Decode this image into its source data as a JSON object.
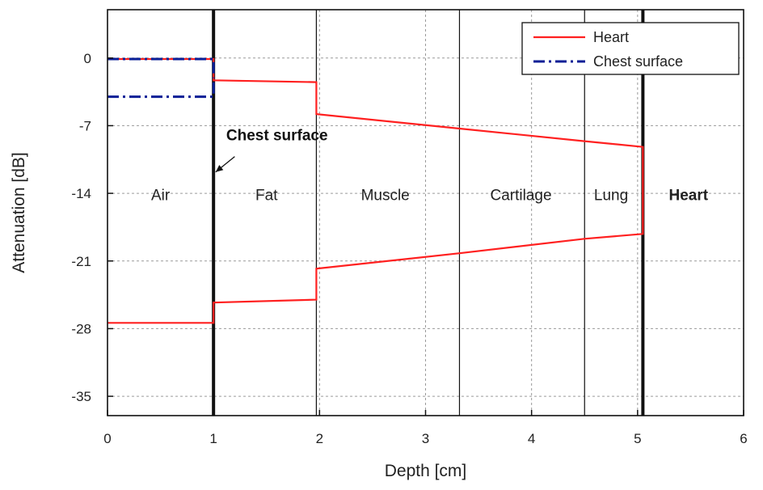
{
  "chart_data": {
    "type": "line",
    "xlabel": "Depth [cm]",
    "ylabel": "Attenuation [dB]",
    "xlim": [
      0,
      6
    ],
    "ylim": [
      -37,
      5
    ],
    "xticks": [
      0,
      1,
      2,
      3,
      4,
      5,
      6
    ],
    "yticks": [
      0,
      -7,
      -14,
      -21,
      -28,
      -35
    ],
    "grid": true,
    "legend_position": "top-right",
    "colors": {
      "heart": "#ff2020",
      "chest": "#0a1e96",
      "boundary": "#111111",
      "grid": "#9a9a9a"
    },
    "boundaries": [
      {
        "x": 1.0,
        "heavy": true
      },
      {
        "x": 1.97,
        "heavy": false
      },
      {
        "x": 3.32,
        "heavy": false
      },
      {
        "x": 4.5,
        "heavy": false
      },
      {
        "x": 5.05,
        "heavy": true
      }
    ],
    "regions": [
      {
        "label": "Air",
        "x": 0.5,
        "y": -14.7,
        "bold": false
      },
      {
        "label": "Fat",
        "x": 1.5,
        "y": -14.7,
        "bold": false
      },
      {
        "label": "Muscle",
        "x": 2.62,
        "y": -14.7,
        "bold": false
      },
      {
        "label": "Cartilage",
        "x": 3.9,
        "y": -14.7,
        "bold": false
      },
      {
        "label": "Lung",
        "x": 4.75,
        "y": -14.7,
        "bold": false
      },
      {
        "label": "Heart",
        "x": 5.48,
        "y": -14.7,
        "bold": true
      }
    ],
    "annotation": {
      "text": "Chest surface",
      "x": 1.12,
      "y": -8.5,
      "arrow_from": [
        1.2,
        -10.2
      ],
      "arrow_to": [
        1.02,
        -11.8
      ]
    },
    "series": [
      {
        "name": "Heart",
        "style": "solid",
        "color": "#ff2020",
        "segments": [
          [
            [
              0,
              -0.1
            ],
            [
              1.0,
              -0.1
            ],
            [
              1.0,
              -2.3
            ],
            [
              1.97,
              -2.5
            ],
            [
              1.97,
              -5.8
            ],
            [
              3.32,
              -7.3
            ],
            [
              4.5,
              -8.6
            ],
            [
              5.05,
              -9.2
            ],
            [
              5.05,
              -18.2
            ],
            [
              4.5,
              -18.7
            ],
            [
              3.32,
              -20.2
            ],
            [
              1.97,
              -21.8
            ],
            [
              1.97,
              -25.0
            ],
            [
              1.0,
              -25.3
            ],
            [
              1.0,
              -27.4
            ],
            [
              0,
              -27.4
            ]
          ]
        ]
      },
      {
        "name": "Chest surface",
        "style": "dash-dot",
        "color": "#0a1e96",
        "segments": [
          [
            [
              0,
              -0.1
            ],
            [
              1.0,
              -0.1
            ],
            [
              1.0,
              -1.6
            ]
          ],
          [
            [
              0,
              -4.0
            ],
            [
              1.0,
              -4.0
            ],
            [
              1.0,
              -2.0
            ]
          ]
        ]
      }
    ]
  }
}
